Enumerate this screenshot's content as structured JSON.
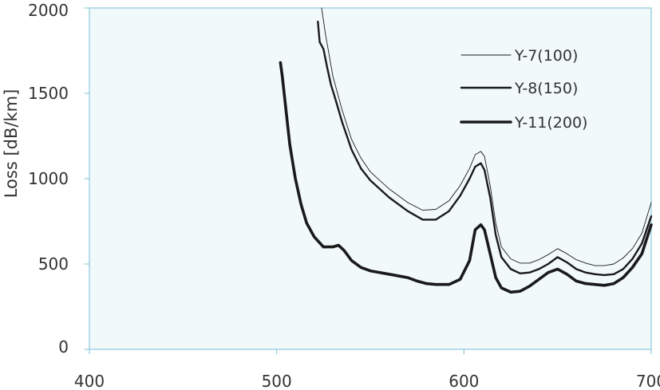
{
  "chart_data": {
    "type": "line",
    "title": "",
    "xlabel": "",
    "ylabel": "Loss [dB/km]",
    "xlim": [
      400,
      700
    ],
    "ylim": [
      0,
      2000
    ],
    "xticks": [
      "400",
      "500",
      "600",
      "700"
    ],
    "yticks": [
      "0",
      "500",
      "1000",
      "1500",
      "2000"
    ],
    "grid": false,
    "legend_position": "top-right",
    "plot_background": "#f1f9fb",
    "axis_color": "#8ec9dc",
    "line_color": "#1a1a1a",
    "series": [
      {
        "name": "Y-7(100)",
        "x": [
          524,
          526,
          530,
          535,
          540,
          545,
          550,
          560,
          570,
          578,
          585,
          592,
          598,
          603,
          606,
          609,
          611,
          614,
          617,
          620,
          625,
          630,
          635,
          640,
          645,
          650,
          655,
          660,
          665,
          670,
          675,
          680,
          685,
          690,
          695,
          700
        ],
        "y": [
          2000,
          1850,
          1600,
          1400,
          1230,
          1120,
          1040,
          940,
          860,
          815,
          820,
          870,
          960,
          1060,
          1140,
          1160,
          1130,
          960,
          740,
          600,
          530,
          505,
          505,
          525,
          555,
          590,
          560,
          525,
          505,
          490,
          490,
          500,
          535,
          590,
          680,
          860
        ]
      },
      {
        "name": "Y-8(150)",
        "x": [
          522,
          523,
          525,
          527,
          529,
          531,
          535,
          540,
          545,
          550,
          560,
          570,
          578,
          585,
          592,
          598,
          603,
          606,
          609,
          611,
          614,
          617,
          620,
          625,
          630,
          635,
          640,
          645,
          650,
          655,
          660,
          665,
          670,
          675,
          680,
          685,
          690,
          695,
          700
        ],
        "y": [
          1920,
          1800,
          1760,
          1650,
          1550,
          1480,
          1330,
          1170,
          1060,
          990,
          890,
          810,
          760,
          760,
          810,
          900,
          1000,
          1070,
          1090,
          1050,
          890,
          670,
          540,
          470,
          445,
          450,
          470,
          500,
          540,
          510,
          470,
          450,
          440,
          435,
          440,
          470,
          530,
          620,
          780
        ]
      },
      {
        "name": "Y-11(200)",
        "x": [
          502,
          503,
          505,
          507,
          510,
          513,
          516,
          520,
          525,
          530,
          533,
          536,
          540,
          545,
          550,
          560,
          570,
          575,
          580,
          585,
          592,
          598,
          603,
          606,
          609,
          611,
          614,
          617,
          620,
          625,
          630,
          635,
          640,
          645,
          650,
          655,
          660,
          665,
          670,
          675,
          680,
          685,
          690,
          695,
          700
        ],
        "y": [
          1680,
          1600,
          1400,
          1200,
          1000,
          850,
          740,
          660,
          600,
          600,
          610,
          580,
          520,
          480,
          460,
          440,
          420,
          400,
          385,
          380,
          380,
          410,
          520,
          700,
          730,
          700,
          560,
          420,
          360,
          335,
          340,
          370,
          410,
          450,
          470,
          440,
          400,
          385,
          380,
          375,
          385,
          420,
          480,
          560,
          730
        ]
      }
    ]
  }
}
